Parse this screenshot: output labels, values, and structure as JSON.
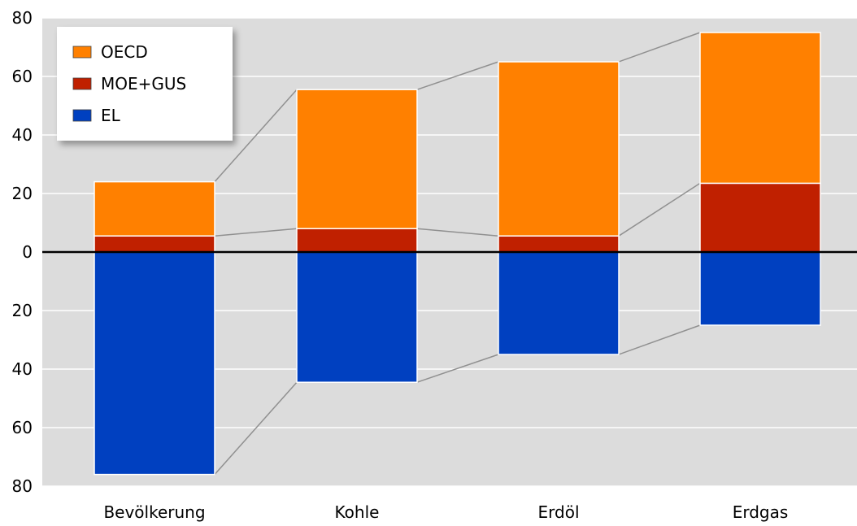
{
  "chart_data": {
    "type": "bar",
    "stacked": true,
    "diverging": true,
    "categories": [
      "Bevölkerung",
      "Kohle",
      "Erdöl",
      "Erdgas"
    ],
    "series": [
      {
        "name": "OECD",
        "color": "#ff8000",
        "direction": "up",
        "values": [
          18.5,
          47.5,
          59.5,
          51.5
        ]
      },
      {
        "name": "MOE+GUS",
        "color": "#c02000",
        "direction": "up",
        "values": [
          5.5,
          8,
          5.5,
          23.5
        ]
      },
      {
        "name": "EL",
        "color": "#0040c0",
        "direction": "down",
        "values": [
          76,
          44.5,
          35,
          25
        ]
      }
    ],
    "yticks": [
      "80",
      "60",
      "40",
      "20",
      "0",
      "20",
      "40",
      "60",
      "80"
    ],
    "ylim": [
      -80,
      80
    ],
    "grid": true,
    "connector_lines": true,
    "legend_position": "top-left",
    "title": "",
    "xlabel": "",
    "ylabel": ""
  },
  "colors": {
    "plot_background": "#dcdcdc",
    "grid": "#ffffff",
    "zero_line": "#000000",
    "connector": "#909090",
    "legend_background": "#ffffff"
  }
}
